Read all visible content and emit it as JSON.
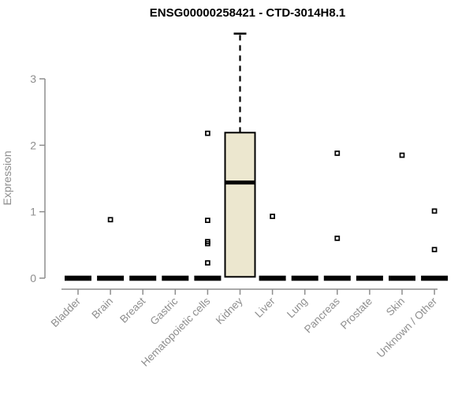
{
  "title": "ENSG00000258421 - CTD-3014H8.1",
  "colors": {
    "axis": "#8e8e8e",
    "tick_label": "#8e8e8e",
    "title": "#000000",
    "box_fill": "#ece7cf",
    "box_stroke": "#000000",
    "outlier": "#000000",
    "background": "#ffffff"
  },
  "chart_data": {
    "type": "boxplot",
    "title": "ENSG00000258421 - CTD-3014H8.1",
    "xlabel": "",
    "ylabel": "Expression",
    "ylim": [
      0,
      3.7
    ],
    "yticks": [
      0,
      1,
      2,
      3
    ],
    "grid": false,
    "legend": false,
    "categories": [
      "Bladder",
      "Brain",
      "Breast",
      "Gastric",
      "Hematopoietic cells",
      "Kidney",
      "Liver",
      "Lung",
      "Pancreas",
      "Prostate",
      "Skin",
      "Unknown / Other"
    ],
    "boxes": [
      {
        "category": "Bladder",
        "min": 0,
        "q1": 0,
        "median": 0,
        "q3": 0,
        "max": 0,
        "outliers": []
      },
      {
        "category": "Brain",
        "min": 0,
        "q1": 0,
        "median": 0,
        "q3": 0,
        "max": 0,
        "outliers": [
          0.88
        ]
      },
      {
        "category": "Breast",
        "min": 0,
        "q1": 0,
        "median": 0,
        "q3": 0,
        "max": 0,
        "outliers": []
      },
      {
        "category": "Gastric",
        "min": 0,
        "q1": 0,
        "median": 0,
        "q3": 0,
        "max": 0,
        "outliers": []
      },
      {
        "category": "Hematopoietic cells",
        "min": 0,
        "q1": 0,
        "median": 0,
        "q3": 0,
        "max": 0,
        "outliers": [
          2.18,
          0.87,
          0.55,
          0.52,
          0.23
        ]
      },
      {
        "category": "Kidney",
        "min": 0,
        "q1": 0.02,
        "median": 1.44,
        "q3": 2.19,
        "max": 3.68,
        "outliers": []
      },
      {
        "category": "Liver",
        "min": 0,
        "q1": 0,
        "median": 0,
        "q3": 0,
        "max": 0,
        "outliers": [
          0.93
        ]
      },
      {
        "category": "Lung",
        "min": 0,
        "q1": 0,
        "median": 0,
        "q3": 0,
        "max": 0,
        "outliers": []
      },
      {
        "category": "Pancreas",
        "min": 0,
        "q1": 0,
        "median": 0,
        "q3": 0,
        "max": 0,
        "outliers": [
          1.88,
          0.6
        ]
      },
      {
        "category": "Prostate",
        "min": 0,
        "q1": 0,
        "median": 0,
        "q3": 0,
        "max": 0,
        "outliers": []
      },
      {
        "category": "Skin",
        "min": 0,
        "q1": 0,
        "median": 0,
        "q3": 0,
        "max": 0,
        "outliers": [
          1.85
        ]
      },
      {
        "category": "Unknown / Other",
        "min": 0,
        "q1": 0,
        "median": 0,
        "q3": 0,
        "max": 0,
        "outliers": [
          1.01,
          0.43
        ]
      }
    ]
  }
}
